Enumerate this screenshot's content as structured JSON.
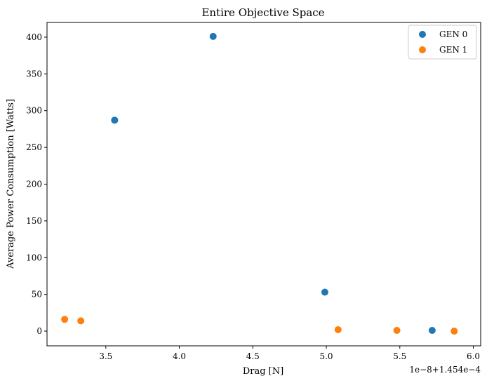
{
  "chart_data": {
    "type": "scatter",
    "title": "Entire Objective Space",
    "xlabel": "Drag [N]",
    "ylabel": "Average Power Consumption [Watts]",
    "x_offset_text": "1e−8+1.454e−4",
    "xlim": [
      3.1,
      6.05
    ],
    "ylim": [
      -20,
      420
    ],
    "x_ticks": [
      3.5,
      4.0,
      4.5,
      5.0,
      5.5,
      6.0
    ],
    "x_tick_labels": [
      "3.5",
      "4.0",
      "4.5",
      "5.0",
      "5.5",
      "6.0"
    ],
    "y_ticks": [
      0,
      50,
      100,
      150,
      200,
      250,
      300,
      350,
      400
    ],
    "y_tick_labels": [
      "0",
      "50",
      "100",
      "150",
      "200",
      "250",
      "300",
      "350",
      "400"
    ],
    "grid": false,
    "legend_position": "top-right",
    "series": [
      {
        "name": "GEN 0",
        "color": "#1f77b4",
        "points": [
          {
            "x": 3.56,
            "y": 287
          },
          {
            "x": 4.23,
            "y": 401
          },
          {
            "x": 4.99,
            "y": 53
          },
          {
            "x": 5.72,
            "y": 1
          }
        ]
      },
      {
        "name": "GEN 1",
        "color": "#ff7f0e",
        "points": [
          {
            "x": 3.22,
            "y": 16
          },
          {
            "x": 3.33,
            "y": 14
          },
          {
            "x": 5.08,
            "y": 2
          },
          {
            "x": 5.48,
            "y": 1
          },
          {
            "x": 5.87,
            "y": 0
          }
        ]
      }
    ]
  }
}
